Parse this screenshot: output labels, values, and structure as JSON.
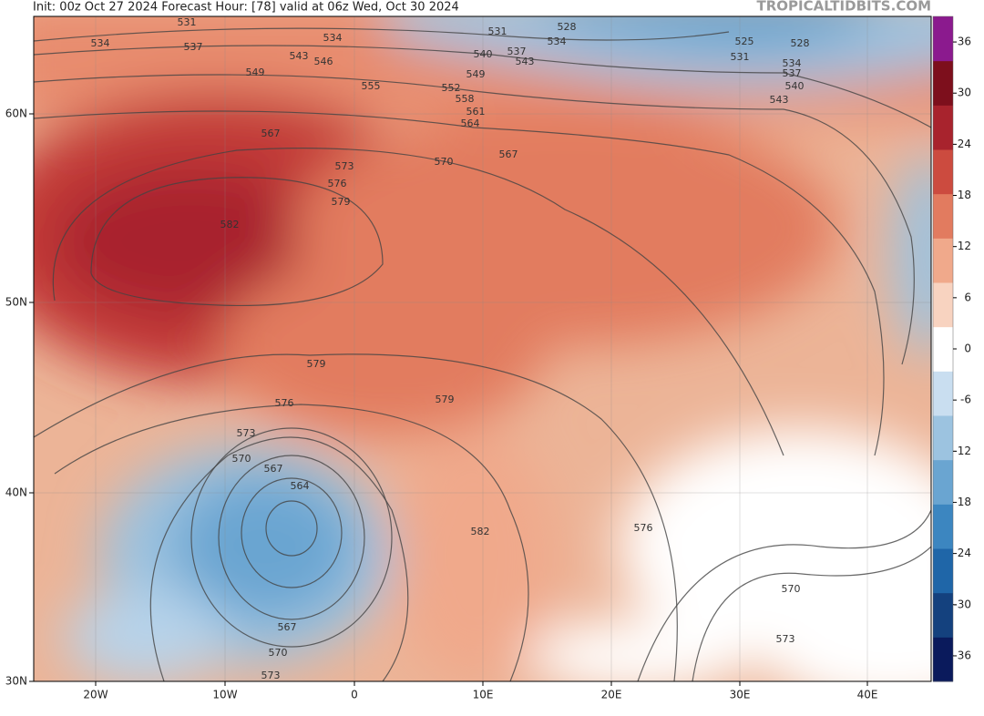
{
  "header": {
    "left": "Init: 00z Oct 27 2024   Forecast Hour: [78]   valid at 06z Wed, Oct 30 2024",
    "right": "TROPICALTIDBITS.COM"
  },
  "map": {
    "lon_labels": [
      "20W",
      "10W",
      "0",
      "10E",
      "20E",
      "30E",
      "40E"
    ],
    "lat_labels": [
      "60N",
      "50N",
      "40N",
      "30N"
    ],
    "contour_labels": [
      "531",
      "534",
      "537",
      "534",
      "543",
      "546",
      "549",
      "555",
      "567",
      "573",
      "576",
      "579",
      "582",
      "570",
      "567",
      "564",
      "561",
      "558",
      "552",
      "549",
      "540",
      "537",
      "543",
      "531",
      "528",
      "534",
      "525",
      "528",
      "531",
      "534",
      "537",
      "540",
      "543",
      "579",
      "576",
      "579",
      "573",
      "570",
      "567",
      "564",
      "582",
      "576",
      "570",
      "573",
      "567",
      "570",
      "573"
    ]
  },
  "colorbar": {
    "limits": [
      -39,
      39
    ],
    "ticks": [
      36,
      30,
      24,
      18,
      12,
      6,
      0,
      -6,
      -12,
      -18,
      -24,
      -30,
      -36
    ],
    "band_colors": [
      "#0a1a5c",
      "#14417e",
      "#1f66a8",
      "#3c86c0",
      "#6aa5d1",
      "#9cc3e0",
      "#c9def0",
      "#ffffff",
      "#f8d3c0",
      "#f0a98b",
      "#e27b5f",
      "#cc4b3f",
      "#a8232d",
      "#7d0f1c",
      "#8b1a8e"
    ]
  }
}
